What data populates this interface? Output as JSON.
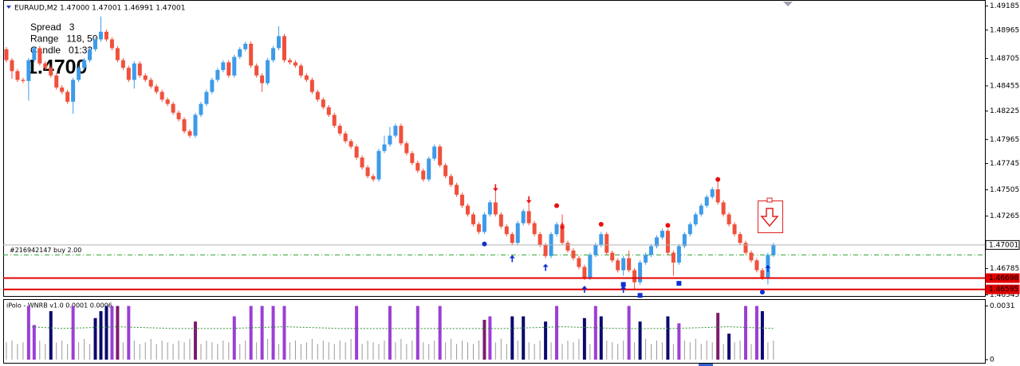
{
  "chart_data": [
    {
      "type": "candlestick",
      "title": "EURAUD,M2 1.47000 1.47001 1.46991 1.47001",
      "up_color": "#3d9be9",
      "down_color": "#f0503c",
      "ylim": [
        1.4654,
        1.4924
      ],
      "yticks": [
        1.49185,
        1.48965,
        1.48705,
        1.48455,
        1.48225,
        1.47965,
        1.47745,
        1.47505,
        1.47265,
        1.46785,
        1.46545
      ],
      "info_lines": [
        {
          "text": "Spread   3",
          "color": "#e00000"
        },
        {
          "text": "Range   118, 50",
          "color": "#000000"
        },
        {
          "text": "Candle   01:32",
          "color": "#0000e0"
        }
      ],
      "big_price": "1.4700",
      "levels": [
        {
          "value": 1.47001,
          "line_color": "#b0b0b0",
          "box_color": "#ffffff",
          "text_color": "#000000"
        },
        {
          "value": 1.46698,
          "line_color": "#e00000",
          "box_color": "#e00000",
          "text_color": "#ffffff"
        },
        {
          "value": 1.46595,
          "line_color": "#e00000",
          "box_color": "#e00000",
          "text_color": "#ffffff"
        }
      ],
      "order": {
        "label": "#216942147 buy 2.00",
        "value": 1.4691,
        "color": "#2ea52e"
      },
      "signals": [
        {
          "shape": "dot",
          "color": "#e81010",
          "points": [
            [
              99,
              1.4736
            ],
            [
              107,
              1.4719
            ],
            [
              119,
              1.4718
            ],
            [
              128,
              1.476
            ]
          ]
        },
        {
          "shape": "dot",
          "color": "#1030d0",
          "points": [
            [
              86,
              1.4701
            ],
            [
              136,
              1.4657
            ]
          ]
        },
        {
          "shape": "arrow-down",
          "color": "#e81010",
          "points": [
            [
              88,
              1.4752
            ],
            [
              94,
              1.4741
            ],
            [
              100,
              1.4717
            ]
          ]
        },
        {
          "shape": "arrow-up",
          "color": "#1030d0",
          "points": [
            [
              91,
              1.4688
            ],
            [
              97,
              1.468
            ],
            [
              104,
              1.466
            ],
            [
              111,
              1.466
            ],
            [
              137,
              1.4679
            ]
          ]
        },
        {
          "shape": "square",
          "color": "#1030d0",
          "points": [
            [
              111,
              1.4664
            ],
            [
              114,
              1.4654
            ],
            [
              121,
              1.4665
            ]
          ]
        }
      ],
      "ohlc": [
        [
          1.4879,
          1.4881,
          1.4867,
          1.4869
        ],
        [
          1.4869,
          1.4871,
          1.4852,
          1.4859
        ],
        [
          1.4859,
          1.4861,
          1.4849,
          1.4851
        ],
        [
          1.4851,
          1.4853,
          1.4848,
          1.485
        ],
        [
          1.485,
          1.4871,
          1.4832,
          1.4869
        ],
        [
          1.4869,
          1.4882,
          1.4867,
          1.488
        ],
        [
          1.488,
          1.4882,
          1.4864,
          1.4866
        ],
        [
          1.4866,
          1.4868,
          1.486,
          1.4862
        ],
        [
          1.4862,
          1.4864,
          1.4853,
          1.4855
        ],
        [
          1.4855,
          1.4857,
          1.4842,
          1.4844
        ],
        [
          1.4844,
          1.4846,
          1.4838,
          1.484
        ],
        [
          1.484,
          1.4842,
          1.4829,
          1.4831
        ],
        [
          1.4831,
          1.4853,
          1.482,
          1.4851
        ],
        [
          1.4851,
          1.4864,
          1.4849,
          1.4862
        ],
        [
          1.4862,
          1.4871,
          1.486,
          1.4869
        ],
        [
          1.4869,
          1.4881,
          1.4867,
          1.4879
        ],
        [
          1.4879,
          1.489,
          1.4877,
          1.4888
        ],
        [
          1.4888,
          1.4909,
          1.4886,
          1.4895
        ],
        [
          1.4895,
          1.4897,
          1.4886,
          1.4888
        ],
        [
          1.4888,
          1.489,
          1.4878,
          1.488
        ],
        [
          1.488,
          1.4882,
          1.4867,
          1.4869
        ],
        [
          1.4869,
          1.4871,
          1.486,
          1.4862
        ],
        [
          1.4862,
          1.4864,
          1.4849,
          1.4851
        ],
        [
          1.4851,
          1.4868,
          1.4843,
          1.4866
        ],
        [
          1.4866,
          1.4868,
          1.4853,
          1.4855
        ],
        [
          1.4855,
          1.4857,
          1.4849,
          1.4851
        ],
        [
          1.4851,
          1.4853,
          1.4843,
          1.4845
        ],
        [
          1.4845,
          1.4847,
          1.4838,
          1.484
        ],
        [
          1.484,
          1.4842,
          1.4831,
          1.4833
        ],
        [
          1.4833,
          1.4835,
          1.4827,
          1.4829
        ],
        [
          1.4829,
          1.4831,
          1.4819,
          1.4821
        ],
        [
          1.4821,
          1.4823,
          1.4813,
          1.4815
        ],
        [
          1.4815,
          1.4817,
          1.4802,
          1.4804
        ],
        [
          1.4804,
          1.4806,
          1.4798,
          1.48
        ],
        [
          1.48,
          1.4821,
          1.4798,
          1.4819
        ],
        [
          1.4819,
          1.4831,
          1.4817,
          1.4829
        ],
        [
          1.4829,
          1.4842,
          1.4827,
          1.484
        ],
        [
          1.484,
          1.4853,
          1.4838,
          1.4851
        ],
        [
          1.4851,
          1.4862,
          1.4849,
          1.486
        ],
        [
          1.486,
          1.4869,
          1.4858,
          1.4867
        ],
        [
          1.4867,
          1.4869,
          1.4853,
          1.4855
        ],
        [
          1.4855,
          1.4874,
          1.4853,
          1.4872
        ],
        [
          1.4872,
          1.4881,
          1.487,
          1.4879
        ],
        [
          1.4879,
          1.4886,
          1.4877,
          1.4884
        ],
        [
          1.4884,
          1.4886,
          1.4862,
          1.4864
        ],
        [
          1.4864,
          1.4866,
          1.4853,
          1.4855
        ],
        [
          1.4855,
          1.4857,
          1.484,
          1.4848
        ],
        [
          1.4848,
          1.4871,
          1.4846,
          1.4869
        ],
        [
          1.4869,
          1.4882,
          1.4867,
          1.488
        ],
        [
          1.488,
          1.49,
          1.4878,
          1.4891
        ],
        [
          1.4891,
          1.4893,
          1.4867,
          1.4869
        ],
        [
          1.4869,
          1.4871,
          1.4865,
          1.4867
        ],
        [
          1.4867,
          1.4869,
          1.4862,
          1.4864
        ],
        [
          1.4864,
          1.4866,
          1.4853,
          1.4855
        ],
        [
          1.4855,
          1.4857,
          1.4849,
          1.4851
        ],
        [
          1.4851,
          1.4853,
          1.4838,
          1.484
        ],
        [
          1.484,
          1.4842,
          1.4831,
          1.4833
        ],
        [
          1.4833,
          1.4835,
          1.4824,
          1.4826
        ],
        [
          1.4826,
          1.4828,
          1.4817,
          1.4819
        ],
        [
          1.4819,
          1.4821,
          1.4807,
          1.4809
        ],
        [
          1.4809,
          1.4811,
          1.48,
          1.4802
        ],
        [
          1.4802,
          1.4804,
          1.4793,
          1.4795
        ],
        [
          1.4795,
          1.4797,
          1.4788,
          1.479
        ],
        [
          1.479,
          1.4792,
          1.4778,
          1.478
        ],
        [
          1.478,
          1.4782,
          1.4769,
          1.4771
        ],
        [
          1.4771,
          1.4773,
          1.4761,
          1.4763
        ],
        [
          1.4763,
          1.4765,
          1.4758,
          1.476
        ],
        [
          1.476,
          1.4788,
          1.4758,
          1.4786
        ],
        [
          1.4786,
          1.48,
          1.4784,
          1.4792
        ],
        [
          1.4792,
          1.4808,
          1.479,
          1.48
        ],
        [
          1.48,
          1.4811,
          1.4798,
          1.4809
        ],
        [
          1.4809,
          1.4811,
          1.4791,
          1.4793
        ],
        [
          1.4793,
          1.4795,
          1.4782,
          1.4784
        ],
        [
          1.4784,
          1.4786,
          1.4773,
          1.4775
        ],
        [
          1.4775,
          1.4777,
          1.4766,
          1.4768
        ],
        [
          1.4768,
          1.477,
          1.4758,
          1.476
        ],
        [
          1.476,
          1.4781,
          1.4758,
          1.4779
        ],
        [
          1.4779,
          1.4792,
          1.4777,
          1.479
        ],
        [
          1.479,
          1.4792,
          1.4771,
          1.4773
        ],
        [
          1.4773,
          1.4775,
          1.4761,
          1.4763
        ],
        [
          1.4763,
          1.4765,
          1.4753,
          1.4755
        ],
        [
          1.4755,
          1.4757,
          1.4744,
          1.4746
        ],
        [
          1.4746,
          1.4748,
          1.4734,
          1.4736
        ],
        [
          1.4736,
          1.4738,
          1.4726,
          1.4728
        ],
        [
          1.4728,
          1.473,
          1.4717,
          1.4719
        ],
        [
          1.4719,
          1.4721,
          1.471,
          1.4712
        ],
        [
          1.4712,
          1.473,
          1.471,
          1.4728
        ],
        [
          1.4728,
          1.4741,
          1.4726,
          1.4739
        ],
        [
          1.4739,
          1.4751,
          1.4726,
          1.4728
        ],
        [
          1.4728,
          1.473,
          1.4715,
          1.4717
        ],
        [
          1.4717,
          1.4719,
          1.4708,
          1.471
        ],
        [
          1.471,
          1.4712,
          1.47,
          1.4702
        ],
        [
          1.4702,
          1.4722,
          1.47,
          1.472
        ],
        [
          1.472,
          1.4733,
          1.4718,
          1.4731
        ],
        [
          1.4731,
          1.474,
          1.4718,
          1.472
        ],
        [
          1.472,
          1.4722,
          1.4708,
          1.471
        ],
        [
          1.471,
          1.4712,
          1.4698,
          1.47
        ],
        [
          1.47,
          1.4702,
          1.4688,
          1.469
        ],
        [
          1.469,
          1.4712,
          1.4688,
          1.471
        ],
        [
          1.471,
          1.4721,
          1.4708,
          1.4719
        ],
        [
          1.4719,
          1.4728,
          1.47,
          1.4702
        ],
        [
          1.4702,
          1.4704,
          1.4693,
          1.4695
        ],
        [
          1.4695,
          1.4697,
          1.4686,
          1.4688
        ],
        [
          1.4688,
          1.469,
          1.4678,
          1.468
        ],
        [
          1.468,
          1.4682,
          1.4668,
          1.467
        ],
        [
          1.467,
          1.4693,
          1.4668,
          1.4691
        ],
        [
          1.4691,
          1.4702,
          1.4689,
          1.47
        ],
        [
          1.47,
          1.4712,
          1.4698,
          1.471
        ],
        [
          1.471,
          1.4712,
          1.4691,
          1.4693
        ],
        [
          1.4693,
          1.4695,
          1.4684,
          1.4686
        ],
        [
          1.4686,
          1.4688,
          1.4675,
          1.4677
        ],
        [
          1.4677,
          1.469,
          1.4672,
          1.4688
        ],
        [
          1.4688,
          1.4695,
          1.4675,
          1.4677
        ],
        [
          1.4677,
          1.4679,
          1.466,
          1.4666
        ],
        [
          1.4666,
          1.4686,
          1.4664,
          1.4684
        ],
        [
          1.4684,
          1.4693,
          1.4682,
          1.4691
        ],
        [
          1.4691,
          1.4701,
          1.4689,
          1.4699
        ],
        [
          1.4699,
          1.4709,
          1.4697,
          1.4707
        ],
        [
          1.4707,
          1.4715,
          1.4705,
          1.4713
        ],
        [
          1.4713,
          1.4715,
          1.4691,
          1.4693
        ],
        [
          1.4693,
          1.4695,
          1.4672,
          1.4684
        ],
        [
          1.4684,
          1.4701,
          1.4682,
          1.4699
        ],
        [
          1.4699,
          1.4712,
          1.4697,
          1.471
        ],
        [
          1.471,
          1.4721,
          1.4708,
          1.4719
        ],
        [
          1.4719,
          1.473,
          1.4717,
          1.4728
        ],
        [
          1.4728,
          1.4738,
          1.4726,
          1.4736
        ],
        [
          1.4736,
          1.4746,
          1.4734,
          1.4744
        ],
        [
          1.4744,
          1.4753,
          1.4742,
          1.4751
        ],
        [
          1.4751,
          1.476,
          1.4737,
          1.4739
        ],
        [
          1.4739,
          1.4741,
          1.4726,
          1.4728
        ],
        [
          1.4728,
          1.473,
          1.4717,
          1.4719
        ],
        [
          1.4719,
          1.4721,
          1.4708,
          1.471
        ],
        [
          1.471,
          1.4712,
          1.47,
          1.4702
        ],
        [
          1.4702,
          1.4704,
          1.4691,
          1.4693
        ],
        [
          1.4693,
          1.4695,
          1.4684,
          1.4686
        ],
        [
          1.4686,
          1.4688,
          1.4675,
          1.4677
        ],
        [
          1.4677,
          1.4679,
          1.4668,
          1.467
        ],
        [
          1.467,
          1.4693,
          1.4664,
          1.4691
        ],
        [
          1.4691,
          1.4702,
          1.4689,
          1.47
        ]
      ]
    },
    {
      "type": "histogram",
      "title": "iPolo - WNRB v1.0 0.0001 0.0006",
      "ylim": [
        0,
        0.0034
      ],
      "yticks": [
        0.0031,
        0
      ],
      "base_color": "#9a9a9a",
      "color_groups": [
        {
          "color": "#9b3fd6",
          "indices": [
            4,
            5,
            12,
            19,
            22,
            41,
            44,
            46,
            48,
            50,
            63,
            69,
            74,
            78,
            87,
            99,
            106,
            112,
            121,
            133,
            135
          ]
        },
        {
          "color": "#0a0a6e",
          "indices": [
            8,
            16,
            17,
            18,
            91,
            93,
            97,
            104,
            107,
            114,
            119,
            130,
            136
          ]
        },
        {
          "color": "#7d1c6b",
          "indices": [
            20,
            34,
            86,
            128
          ]
        }
      ],
      "values": [
        0.001,
        0.0011,
        0.0009,
        0.001,
        0.0031,
        0.002,
        0.0011,
        0.0009,
        0.0028,
        0.001,
        0.0011,
        0.0009,
        0.0031,
        0.001,
        0.0012,
        0.0009,
        0.0024,
        0.0028,
        0.0031,
        0.0031,
        0.0031,
        0.001,
        0.0031,
        0.0011,
        0.0009,
        0.001,
        0.0012,
        0.0009,
        0.0011,
        0.001,
        0.0009,
        0.0011,
        0.001,
        0.0012,
        0.0022,
        0.0009,
        0.0011,
        0.001,
        0.0009,
        0.0011,
        0.001,
        0.0025,
        0.0009,
        0.0011,
        0.0031,
        0.001,
        0.0031,
        0.0012,
        0.0031,
        0.0009,
        0.0031,
        0.001,
        0.0011,
        0.0009,
        0.001,
        0.0012,
        0.0009,
        0.0011,
        0.001,
        0.0009,
        0.0011,
        0.001,
        0.0012,
        0.0031,
        0.0009,
        0.0011,
        0.001,
        0.0009,
        0.0011,
        0.0031,
        0.001,
        0.0012,
        0.0009,
        0.0011,
        0.0031,
        0.001,
        0.0009,
        0.0011,
        0.0031,
        0.001,
        0.0012,
        0.0009,
        0.0011,
        0.001,
        0.0009,
        0.0011,
        0.0023,
        0.0025,
        0.001,
        0.0012,
        0.0009,
        0.0025,
        0.0011,
        0.0025,
        0.001,
        0.0009,
        0.0011,
        0.0022,
        0.001,
        0.0031,
        0.0009,
        0.0011,
        0.001,
        0.0012,
        0.0024,
        0.0009,
        0.0031,
        0.0025,
        0.0011,
        0.001,
        0.0009,
        0.0011,
        0.0031,
        0.001,
        0.0022,
        0.0012,
        0.0009,
        0.0011,
        0.001,
        0.0025,
        0.0009,
        0.0021,
        0.0011,
        0.001,
        0.0012,
        0.0009,
        0.0011,
        0.001,
        0.0027,
        0.0009,
        0.0015,
        0.001,
        0.0011,
        0.0031,
        0.0009,
        0.0031,
        0.0028,
        0.001,
        0.0011
      ],
      "signal_line": {
        "color": "#2e8b2e",
        "x": [
          4,
          10,
          20,
          30,
          40,
          50,
          60,
          70,
          80,
          90,
          100,
          110,
          120,
          130,
          138
        ],
        "values": [
          0.0019,
          0.0018,
          0.0019,
          0.0018,
          0.0018,
          0.0019,
          0.0018,
          0.0018,
          0.0018,
          0.0018,
          0.0019,
          0.0018,
          0.0018,
          0.0019,
          0.0018
        ]
      }
    }
  ]
}
